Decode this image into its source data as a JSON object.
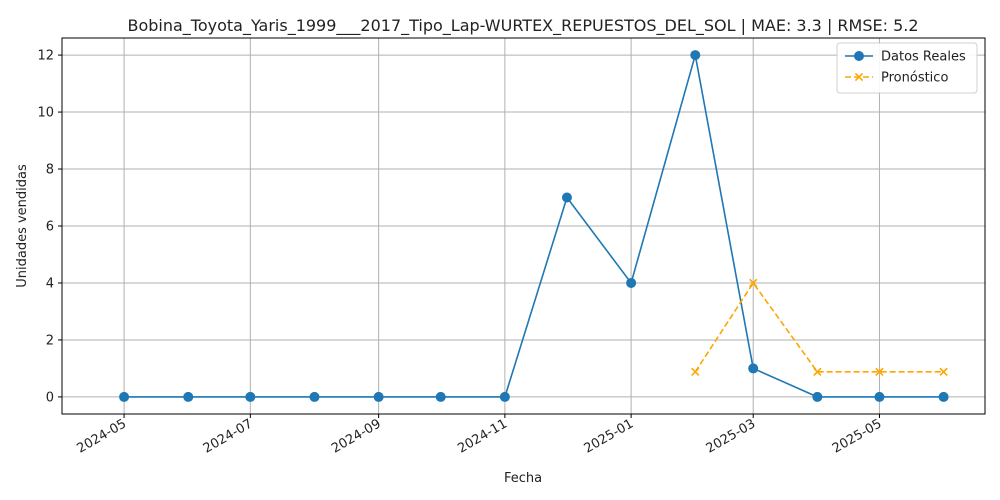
{
  "chart_data": {
    "type": "line",
    "title": "Bobina_Toyota_Yaris_1999___2017_Tipo_Lap-WURTEX_REPUESTOS_DEL_SOL | MAE: 3.3 | RMSE: 5.2",
    "xlabel": "Fecha",
    "ylabel": "Unidades vendidas",
    "x_ticks": [
      "2024-05",
      "2024-07",
      "2024-09",
      "2024-11",
      "2025-01",
      "2025-03",
      "2025-05"
    ],
    "y_ticks": [
      0,
      2,
      4,
      6,
      8,
      10,
      12
    ],
    "ylim": [
      -0.6,
      12.6
    ],
    "xlim": [
      "2024-04-01",
      "2025-06-21"
    ],
    "grid": true,
    "legend_position": "top-right",
    "series": [
      {
        "name": "Datos Reales",
        "color": "#1f77b4",
        "line_style": "solid",
        "marker": "circle",
        "points": [
          {
            "x": "2024-05-01",
            "y": 0
          },
          {
            "x": "2024-06-01",
            "y": 0
          },
          {
            "x": "2024-07-01",
            "y": 0
          },
          {
            "x": "2024-08-01",
            "y": 0
          },
          {
            "x": "2024-09-01",
            "y": 0
          },
          {
            "x": "2024-10-01",
            "y": 0
          },
          {
            "x": "2024-11-01",
            "y": 0
          },
          {
            "x": "2024-12-01",
            "y": 7
          },
          {
            "x": "2025-01-01",
            "y": 4
          },
          {
            "x": "2025-02-01",
            "y": 12
          },
          {
            "x": "2025-03-01",
            "y": 1
          },
          {
            "x": "2025-04-01",
            "y": 0
          },
          {
            "x": "2025-05-01",
            "y": 0
          },
          {
            "x": "2025-06-01",
            "y": 0
          }
        ]
      },
      {
        "name": "Pronóstico",
        "color": "#ffa500",
        "line_style": "dashed",
        "marker": "x",
        "points": [
          {
            "x": "2025-02-01",
            "y": 0.88
          },
          {
            "x": "2025-03-01",
            "y": 4
          },
          {
            "x": "2025-04-01",
            "y": 0.88
          },
          {
            "x": "2025-05-01",
            "y": 0.88
          },
          {
            "x": "2025-06-01",
            "y": 0.88
          }
        ]
      }
    ]
  }
}
